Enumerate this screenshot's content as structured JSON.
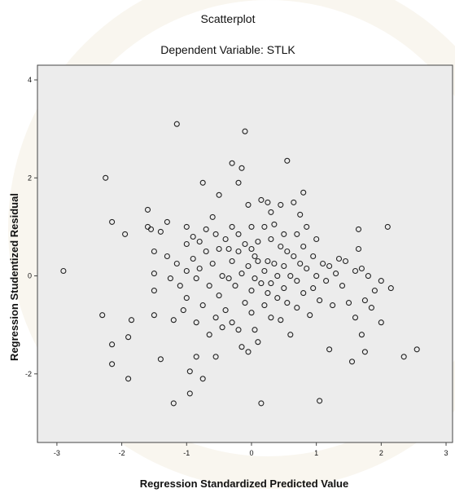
{
  "chart_data": {
    "type": "scatter",
    "title": "Scatterplot",
    "subtitle": "Dependent Variable: STLK",
    "xlabel": "Regression Standardized Predicted Value",
    "ylabel": "Regression Studentized Residual",
    "xlim": [
      -3.3,
      3.1
    ],
    "ylim": [
      -3.4,
      4.3
    ],
    "xticks": [
      -3,
      -2,
      -1,
      0,
      1,
      2,
      3
    ],
    "yticks": [
      -2,
      0,
      2,
      4
    ],
    "grid": false,
    "colors": {
      "plot_background": "#ececec",
      "marker": "#222222",
      "frame": "#444444",
      "watermark": "#d9c79a"
    },
    "points": [
      [
        -2.9,
        0.1
      ],
      [
        -2.25,
        2.0
      ],
      [
        -2.3,
        -0.8
      ],
      [
        -2.15,
        1.1
      ],
      [
        -2.15,
        -1.4
      ],
      [
        -2.15,
        -1.8
      ],
      [
        -1.95,
        0.85
      ],
      [
        -1.9,
        -1.25
      ],
      [
        -1.9,
        -2.1
      ],
      [
        -1.85,
        -0.9
      ],
      [
        -1.6,
        1.35
      ],
      [
        -1.6,
        1.0
      ],
      [
        -1.55,
        0.95
      ],
      [
        -1.5,
        0.5
      ],
      [
        -1.5,
        0.05
      ],
      [
        -1.5,
        -0.3
      ],
      [
        -1.5,
        -0.8
      ],
      [
        -1.4,
        0.9
      ],
      [
        -1.4,
        -1.7
      ],
      [
        -1.3,
        1.1
      ],
      [
        -1.3,
        0.4
      ],
      [
        -1.25,
        -0.05
      ],
      [
        -1.2,
        -2.6
      ],
      [
        -1.2,
        -0.9
      ],
      [
        -1.15,
        3.1
      ],
      [
        -1.15,
        0.25
      ],
      [
        -1.1,
        -0.2
      ],
      [
        -1.05,
        -0.7
      ],
      [
        -1.0,
        1.0
      ],
      [
        -1.0,
        0.65
      ],
      [
        -1.0,
        0.1
      ],
      [
        -1.0,
        -0.45
      ],
      [
        -0.95,
        -2.4
      ],
      [
        -0.95,
        -1.95
      ],
      [
        -0.9,
        0.8
      ],
      [
        -0.9,
        0.35
      ],
      [
        -0.85,
        -0.05
      ],
      [
        -0.85,
        -0.95
      ],
      [
        -0.85,
        -1.65
      ],
      [
        -0.8,
        0.7
      ],
      [
        -0.8,
        0.15
      ],
      [
        -0.75,
        1.9
      ],
      [
        -0.75,
        -0.6
      ],
      [
        -0.75,
        -2.1
      ],
      [
        -0.7,
        0.95
      ],
      [
        -0.7,
        0.5
      ],
      [
        -0.65,
        -0.2
      ],
      [
        -0.65,
        -1.2
      ],
      [
        -0.6,
        1.2
      ],
      [
        -0.6,
        0.25
      ],
      [
        -0.55,
        0.85
      ],
      [
        -0.55,
        -0.85
      ],
      [
        -0.55,
        -1.65
      ],
      [
        -0.5,
        1.65
      ],
      [
        -0.5,
        0.55
      ],
      [
        -0.5,
        -0.4
      ],
      [
        -0.45,
        0.0
      ],
      [
        -0.45,
        -1.05
      ],
      [
        -0.4,
        0.75
      ],
      [
        -0.4,
        -0.7
      ],
      [
        -0.35,
        0.55
      ],
      [
        -0.35,
        -0.05
      ],
      [
        -0.3,
        2.3
      ],
      [
        -0.3,
        1.0
      ],
      [
        -0.3,
        0.3
      ],
      [
        -0.3,
        -0.95
      ],
      [
        -0.25,
        -0.2
      ],
      [
        -0.2,
        0.85
      ],
      [
        -0.2,
        0.5
      ],
      [
        -0.2,
        1.9
      ],
      [
        -0.2,
        -1.1
      ],
      [
        -0.15,
        2.2
      ],
      [
        -0.15,
        0.05
      ],
      [
        -0.15,
        -1.45
      ],
      [
        -0.1,
        0.65
      ],
      [
        -0.1,
        -0.55
      ],
      [
        -0.05,
        1.45
      ],
      [
        -0.05,
        0.2
      ],
      [
        -0.05,
        -1.55
      ],
      [
        -0.1,
        2.95
      ],
      [
        0.0,
        1.0
      ],
      [
        0.0,
        0.55
      ],
      [
        0.0,
        -0.3
      ],
      [
        0.0,
        -0.75
      ],
      [
        0.05,
        0.4
      ],
      [
        0.05,
        -0.05
      ],
      [
        0.05,
        -1.1
      ],
      [
        0.1,
        0.7
      ],
      [
        0.1,
        0.3
      ],
      [
        0.1,
        -1.35
      ],
      [
        0.15,
        1.55
      ],
      [
        0.15,
        -0.15
      ],
      [
        0.15,
        -2.6
      ],
      [
        0.2,
        1.0
      ],
      [
        0.2,
        0.1
      ],
      [
        0.2,
        -0.6
      ],
      [
        0.25,
        1.5
      ],
      [
        0.25,
        0.3
      ],
      [
        0.25,
        -0.35
      ],
      [
        0.3,
        1.3
      ],
      [
        0.3,
        0.75
      ],
      [
        0.3,
        -0.15
      ],
      [
        0.3,
        -0.85
      ],
      [
        0.35,
        1.05
      ],
      [
        0.35,
        0.25
      ],
      [
        0.4,
        0.0
      ],
      [
        0.4,
        -0.45
      ],
      [
        0.45,
        1.45
      ],
      [
        0.45,
        0.6
      ],
      [
        0.45,
        -0.9
      ],
      [
        0.5,
        0.85
      ],
      [
        0.5,
        0.2
      ],
      [
        0.5,
        -0.25
      ],
      [
        0.55,
        2.35
      ],
      [
        0.55,
        0.5
      ],
      [
        0.55,
        -0.55
      ],
      [
        0.6,
        0.0
      ],
      [
        0.6,
        -1.2
      ],
      [
        0.65,
        1.5
      ],
      [
        0.65,
        0.4
      ],
      [
        0.7,
        0.85
      ],
      [
        0.7,
        -0.1
      ],
      [
        0.7,
        -0.65
      ],
      [
        0.75,
        1.25
      ],
      [
        0.75,
        0.25
      ],
      [
        0.8,
        1.7
      ],
      [
        0.8,
        0.6
      ],
      [
        0.8,
        -0.35
      ],
      [
        0.85,
        1.0
      ],
      [
        0.85,
        0.15
      ],
      [
        0.9,
        -0.8
      ],
      [
        0.95,
        0.4
      ],
      [
        0.95,
        -0.25
      ],
      [
        1.0,
        0.75
      ],
      [
        1.0,
        0.0
      ],
      [
        1.05,
        -2.55
      ],
      [
        1.05,
        -0.5
      ],
      [
        1.1,
        0.25
      ],
      [
        1.15,
        -0.1
      ],
      [
        1.2,
        -1.5
      ],
      [
        1.2,
        0.2
      ],
      [
        1.25,
        -0.6
      ],
      [
        1.3,
        0.05
      ],
      [
        1.35,
        0.35
      ],
      [
        1.4,
        -0.2
      ],
      [
        1.45,
        0.3
      ],
      [
        1.5,
        -0.55
      ],
      [
        1.55,
        -1.75
      ],
      [
        1.6,
        0.1
      ],
      [
        1.6,
        -0.85
      ],
      [
        1.65,
        0.95
      ],
      [
        1.65,
        0.55
      ],
      [
        1.7,
        0.15
      ],
      [
        1.7,
        -1.2
      ],
      [
        1.75,
        -0.5
      ],
      [
        1.75,
        -1.55
      ],
      [
        1.8,
        0.0
      ],
      [
        1.85,
        -0.65
      ],
      [
        1.9,
        -0.3
      ],
      [
        2.0,
        -0.1
      ],
      [
        2.0,
        -0.95
      ],
      [
        2.1,
        1.0
      ],
      [
        2.15,
        -0.25
      ],
      [
        2.35,
        -1.65
      ],
      [
        2.55,
        -1.5
      ]
    ]
  }
}
